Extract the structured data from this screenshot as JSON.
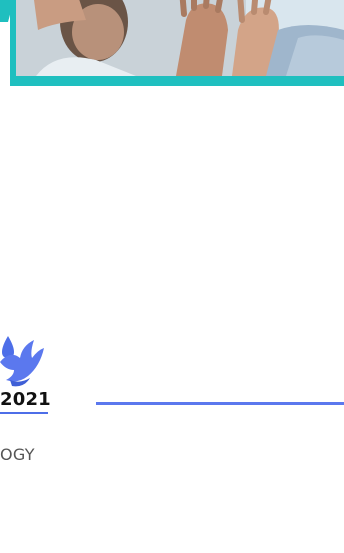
{
  "hero": {
    "image": "people-high-five-photo",
    "frame_color": "#1fbfbf"
  },
  "logo": {
    "icon": "blue-bird-drop-logo-icon",
    "color": "#4d6ee8"
  },
  "event": {
    "year": "2021",
    "category_fragment": "OGY"
  },
  "colors": {
    "accent": "#5b78ee",
    "text": "#111111",
    "muted_text": "#555555"
  }
}
